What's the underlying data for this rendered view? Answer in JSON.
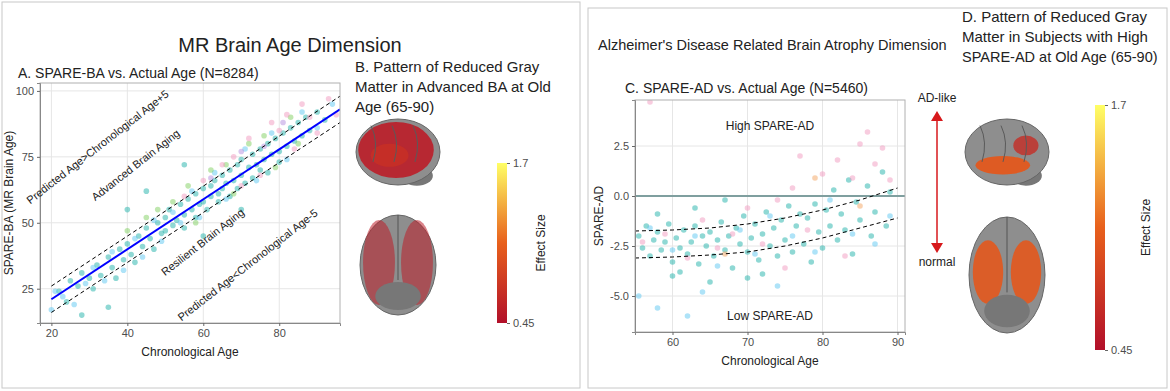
{
  "panels": [
    {
      "title": "MR Brain Age Dimension"
    },
    {
      "title": "Alzheimer's Disease Related Brain Atrophy Dimension"
    }
  ],
  "chart_data": [
    {
      "type": "scatter",
      "title": "A. SPARE-BA vs. Actual Age (N=8284)",
      "x_label": "Chronological Age",
      "y_label": "SPARE-BA (MR Brain Age)",
      "xlim": [
        17,
        96
      ],
      "ylim": [
        12,
        103
      ],
      "xticks": [
        20,
        40,
        60,
        80
      ],
      "yticks": [
        25,
        50,
        75,
        100
      ],
      "grid": true,
      "annotations": [
        "Predicted Age>Chronological Age+5",
        "Advanced Brain Aging",
        "Resilient Brain Aging",
        "Predicted Age<Chronological Age-5"
      ],
      "series": [
        {
          "color": "#20b2aa",
          "marker": "circle",
          "x": [
            22,
            24,
            25,
            27,
            28,
            30,
            31,
            32,
            33,
            35,
            36,
            37,
            38,
            39,
            40,
            41,
            42,
            43,
            44,
            45,
            46,
            47,
            48,
            49,
            50,
            50,
            51,
            52,
            53,
            54,
            55,
            55,
            56,
            57,
            58,
            58,
            59,
            60,
            60,
            61,
            62,
            62,
            63,
            64,
            64,
            65,
            65,
            66,
            67,
            67,
            68,
            69,
            69,
            70,
            70,
            71,
            72,
            73,
            73,
            74,
            75,
            75,
            76,
            77,
            77,
            78,
            79,
            80,
            80,
            81,
            82,
            83,
            84,
            85,
            86,
            87,
            88,
            90,
            92,
            45,
            55,
            60,
            70,
            40,
            35,
            28
          ],
          "values": [
            24,
            20,
            28,
            26,
            31,
            29,
            25,
            34,
            30,
            37,
            33,
            29,
            40,
            36,
            42,
            38,
            35,
            45,
            41,
            48,
            44,
            40,
            50,
            46,
            52,
            47,
            55,
            49,
            51,
            57,
            53,
            48,
            59,
            55,
            52,
            61,
            57,
            63,
            58,
            55,
            64,
            60,
            66,
            61,
            58,
            68,
            63,
            65,
            60,
            70,
            66,
            72,
            63,
            68,
            74,
            65,
            71,
            76,
            67,
            72,
            78,
            70,
            74,
            80,
            69,
            76,
            82,
            77,
            73,
            84,
            79,
            86,
            81,
            88,
            83,
            90,
            85,
            92,
            89,
            62,
            72,
            45,
            55,
            55,
            18,
            15
          ]
        },
        {
          "color": "#5ec8f2",
          "marker": "circle",
          "x": [
            20,
            21,
            23,
            26,
            29,
            31,
            34,
            36,
            39,
            42,
            44,
            47,
            49,
            52,
            54,
            57,
            59,
            63,
            66,
            71,
            74,
            78,
            82,
            86,
            90,
            94
          ],
          "values": [
            17,
            24,
            22,
            19,
            27,
            33,
            28,
            39,
            32,
            44,
            37,
            51,
            43,
            54,
            50,
            62,
            52,
            69,
            59,
            78,
            66,
            84,
            74,
            92,
            86,
            95
          ]
        },
        {
          "color": "#7fcf5f",
          "marker": "circle",
          "x": [
            40,
            45,
            48,
            52,
            56,
            58,
            62,
            66,
            68,
            72,
            76,
            79,
            83,
            85
          ],
          "values": [
            47,
            52,
            55,
            58,
            64,
            50,
            70,
            72,
            61,
            80,
            83,
            71,
            90,
            80
          ]
        },
        {
          "color": "#f29ac0",
          "marker": "circle",
          "x": [
            55,
            60,
            65,
            68,
            70,
            72,
            75,
            78,
            80,
            82,
            84,
            86,
            88,
            90,
            93,
            95
          ],
          "values": [
            60,
            66,
            72,
            75,
            64,
            82,
            68,
            88,
            85,
            91,
            78,
            95,
            90,
            84,
            97,
            91
          ]
        },
        {
          "color": "#b48ee0",
          "marker": "circle",
          "x": [
            62,
            70,
            76,
            81
          ],
          "values": [
            67,
            77,
            79,
            88
          ]
        },
        {
          "type": "line",
          "color": "#0000ff",
          "line_style": "solid",
          "x": [
            20,
            96
          ],
          "values": [
            21,
            93
          ]
        },
        {
          "type": "line",
          "color": "#000000",
          "line_style": "dashed",
          "x": [
            20,
            96
          ],
          "values": [
            26,
            98
          ]
        },
        {
          "type": "line",
          "color": "#000000",
          "line_style": "dashed",
          "x": [
            20,
            96
          ],
          "values": [
            16,
            88
          ]
        }
      ]
    },
    {
      "type": "brain_map",
      "title": [
        "B. Pattern of Reduced Gray",
        "Matter in Advanced BA at Old",
        "Age (65-90)"
      ],
      "colorbar": {
        "label": "Effect Size",
        "range": [
          0.45,
          1.7
        ],
        "ticks": [
          1.7,
          0.45
        ],
        "colors": [
          "#b2102a",
          "#e8601c",
          "#ffff66"
        ]
      }
    },
    {
      "type": "scatter",
      "title": "C. SPARE-AD vs. Actual Age (N=5460)",
      "x_label": "Chronological Age",
      "y_label": "SPARE-AD",
      "xlim": [
        55,
        91
      ],
      "ylim": [
        -6.8,
        4.8
      ],
      "xticks": [
        60,
        70,
        80,
        90
      ],
      "yticks": [
        2.5,
        {
          "value": 0,
          "label": "0.0"
        },
        -2.5,
        {
          "value": -5,
          "label": "-5.0"
        }
      ],
      "grid": true,
      "annotations": [
        "High SPARE-AD",
        "Low SPARE-AD",
        "AD-like",
        "normal"
      ],
      "series": [
        {
          "color": "#20b2aa",
          "marker": "circle",
          "x": [
            55.5,
            56,
            56.5,
            57,
            57.5,
            58,
            58.5,
            59,
            59.5,
            60,
            60.5,
            61,
            61.5,
            62,
            62.5,
            63,
            63.5,
            64,
            64.5,
            65,
            65.5,
            66,
            66.5,
            67,
            67.5,
            68,
            68.5,
            69,
            69.5,
            70,
            70.5,
            71,
            71.5,
            72,
            72.5,
            73,
            73.5,
            74,
            74.5,
            75,
            75.5,
            76,
            76.5,
            77,
            77.5,
            78,
            78.5,
            79,
            79.5,
            80,
            80.5,
            81,
            81.5,
            82,
            82.5,
            83,
            83.5,
            84,
            84.5,
            85,
            86,
            86.5,
            87,
            88,
            88.5,
            89,
            60,
            65,
            70,
            63,
            58,
            67,
            61,
            72
          ],
          "values": [
            -2.0,
            -2.6,
            -1.5,
            -3.0,
            -2.2,
            -1.8,
            -2.7,
            -2.3,
            -1.4,
            -3.3,
            -2.1,
            -2.6,
            -1.7,
            -2.9,
            -2.3,
            -1.5,
            -3.4,
            -2.0,
            -2.5,
            -1.8,
            -3.0,
            -2.2,
            -1.3,
            -2.7,
            -2.0,
            -3.6,
            -1.6,
            -2.4,
            -1.0,
            -2.8,
            -2.1,
            -1.4,
            -3.2,
            -1.9,
            -0.8,
            -2.5,
            -1.6,
            -3.0,
            -1.2,
            -2.2,
            -0.5,
            -2.8,
            -1.5,
            -0.9,
            -2.4,
            -1.1,
            -3.3,
            -0.4,
            -1.8,
            -2.6,
            -0.7,
            -1.5,
            0.3,
            -2.2,
            -0.9,
            -1.7,
            0.8,
            -2.9,
            -0.3,
            -1.2,
            0.5,
            -2.0,
            -0.8,
            1.2,
            -1.5,
            0.2,
            -4.0,
            -4.3,
            -4.1,
            -0.6,
            -0.9,
            -0.2,
            -3.8,
            -3.9
          ]
        },
        {
          "color": "#f29ac0",
          "marker": "circle",
          "x": [
            56,
            59,
            62,
            64,
            66,
            68,
            70,
            72,
            74,
            76,
            78,
            80,
            82,
            84,
            85,
            86,
            87,
            88,
            89,
            57,
            77,
            83,
            75
          ],
          "values": [
            -2.3,
            -1.9,
            -3.1,
            -1.2,
            -2.6,
            -1.9,
            -0.6,
            -2.4,
            -0.2,
            0.4,
            -1.7,
            1.1,
            1.8,
            0.9,
            2.6,
            3.2,
            1.6,
            2.4,
            0.8,
            4.7,
            2.0,
            -3.0,
            -3.6
          ]
        },
        {
          "color": "#5ec8f2",
          "marker": "circle",
          "x": [
            57,
            60,
            63,
            66,
            69,
            71,
            73,
            76,
            79,
            81,
            84,
            87,
            89,
            55.5,
            64,
            58,
            62,
            74
          ],
          "values": [
            -1.6,
            -2.7,
            -2.0,
            -3.5,
            -1.7,
            -2.9,
            -1.0,
            -2.0,
            -2.8,
            -0.2,
            -1.9,
            -2.4,
            -1.0,
            -5.0,
            -4.8,
            -5.6,
            -6.0,
            -4.5
          ]
        },
        {
          "color": "#f4a460",
          "marker": "circle",
          "x": [
            67,
            79,
            85
          ],
          "values": [
            -2.9,
            0.9,
            -0.5
          ]
        },
        {
          "type": "line",
          "color": "#7f9f9f",
          "line_style": "solid",
          "x": [
            55,
            91
          ],
          "values": [
            0,
            0
          ]
        },
        {
          "type": "line",
          "color": "#000000",
          "line_style": "dashed",
          "x": [
            55,
            60,
            65,
            70,
            75,
            80,
            85,
            90
          ],
          "values": [
            -1.75,
            -1.7,
            -1.6,
            -1.4,
            -1.1,
            -0.7,
            -0.2,
            0.4
          ]
        },
        {
          "type": "line",
          "color": "#000000",
          "line_style": "dashed",
          "x": [
            55,
            60,
            65,
            70,
            75,
            80,
            85,
            90
          ],
          "values": [
            -3.1,
            -3.05,
            -2.95,
            -2.8,
            -2.5,
            -2.1,
            -1.6,
            -1.1
          ]
        }
      ]
    },
    {
      "type": "brain_map",
      "title": [
        "D. Pattern of Reduced Gray",
        "Matter in Subjects with High",
        "SPARE-AD at Old Age (65-90)"
      ],
      "colorbar": {
        "label": "Effect Size",
        "range": [
          0.45,
          1.7
        ],
        "ticks": [
          1.7,
          0.45
        ],
        "colors": [
          "#b2102a",
          "#e8601c",
          "#ffff66"
        ]
      }
    }
  ]
}
